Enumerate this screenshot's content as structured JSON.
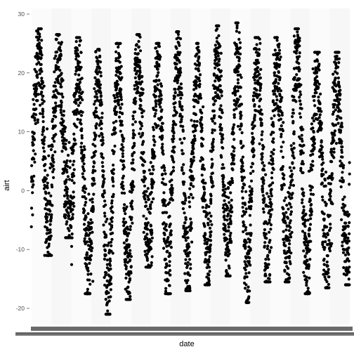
{
  "chart_data": {
    "type": "scatter",
    "title": "",
    "xlabel": "date",
    "ylabel": "airt",
    "ylim": [
      -22,
      30
    ],
    "y_ticks": [
      30,
      20,
      10,
      0,
      -10,
      -20
    ],
    "grid": false,
    "background": "#ffffff",
    "point_color": "#000000",
    "x_tick_labels_note": "x tick labels are unreadable overlapping dark text along the axis",
    "seasonal_cycles": [
      {
        "peak_airt": 27.5,
        "trough_airt": -11.0
      },
      {
        "peak_airt": 26.5,
        "trough_airt": -8.0
      },
      {
        "peak_airt": 26.0,
        "trough_airt": -17.5
      },
      {
        "peak_airt": 24.0,
        "trough_airt": -21.0
      },
      {
        "peak_airt": 25.0,
        "trough_airt": -18.5
      },
      {
        "peak_airt": 26.5,
        "trough_airt": -13.0
      },
      {
        "peak_airt": 25.0,
        "trough_airt": -17.5
      },
      {
        "peak_airt": 27.0,
        "trough_airt": -17.0
      },
      {
        "peak_airt": 25.0,
        "trough_airt": -16.0
      },
      {
        "peak_airt": 28.0,
        "trough_airt": -14.5
      },
      {
        "peak_airt": 28.5,
        "trough_airt": -19.0
      },
      {
        "peak_airt": 26.0,
        "trough_airt": -15.5
      },
      {
        "peak_airt": 26.0,
        "trough_airt": -15.5
      },
      {
        "peak_airt": 27.5,
        "trough_airt": -17.5
      },
      {
        "peak_airt": 23.5,
        "trough_airt": -16.5
      },
      {
        "peak_airt": 23.5,
        "trough_airt": -16.0
      }
    ]
  }
}
